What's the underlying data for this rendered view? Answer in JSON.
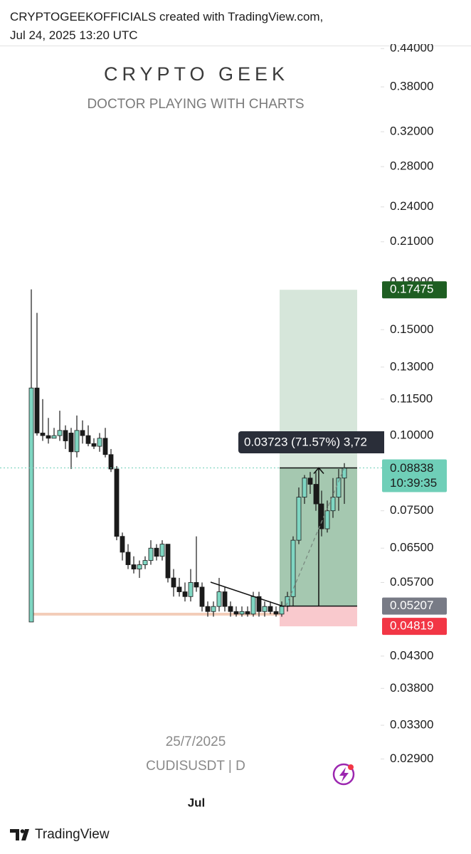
{
  "header": {
    "line1": "CRYPTOGEEKOFFICIALS created with TradingView.com,",
    "line2": "Jul 24, 2025 13:20 UTC"
  },
  "footer": {
    "brand": "TradingView"
  },
  "chart_data": {
    "type": "candlestick",
    "watermark_title": "CRYPTO GEEK",
    "watermark_subtitle": "DOCTOR PLAYING WITH CHARTS",
    "date_label": "25/7/2025",
    "symbol": "CUDISUSDT | D",
    "log_scale": true,
    "up_color": "#7fd6c2",
    "down_color": "#1a1a1a",
    "ylim": [
      0.0231,
      0.4439
    ],
    "yticks": [
      {
        "value": 0.44,
        "label": "0.44000"
      },
      {
        "value": 0.38,
        "label": "0.38000"
      },
      {
        "value": 0.32,
        "label": "0.32000"
      },
      {
        "value": 0.28,
        "label": "0.28000"
      },
      {
        "value": 0.24,
        "label": "0.24000"
      },
      {
        "value": 0.21,
        "label": "0.21000"
      },
      {
        "value": 0.18,
        "label": "0.18000"
      },
      {
        "value": 0.15,
        "label": "0.15000"
      },
      {
        "value": 0.13,
        "label": "0.13000"
      },
      {
        "value": 0.115,
        "label": "0.11500"
      },
      {
        "value": 0.1,
        "label": "0.10000"
      },
      {
        "value": 0.075,
        "label": "0.07500"
      },
      {
        "value": 0.065,
        "label": "0.06500"
      },
      {
        "value": 0.057,
        "label": "0.05700"
      },
      {
        "value": 0.043,
        "label": "0.04300"
      },
      {
        "value": 0.038,
        "label": "0.03800"
      },
      {
        "value": 0.033,
        "label": "0.03300"
      },
      {
        "value": 0.029,
        "label": "0.02900"
      }
    ],
    "categories": [
      null,
      null,
      null,
      null,
      null,
      null,
      null,
      null,
      null,
      null,
      null,
      null,
      null,
      null,
      null,
      null,
      null,
      null,
      null,
      null,
      null,
      null,
      null,
      null,
      null,
      null,
      null,
      null,
      null,
      "Jul",
      null,
      null,
      null,
      null,
      null,
      null,
      null,
      null,
      null,
      null,
      null,
      null,
      null,
      null,
      null,
      null,
      null,
      null,
      null,
      null,
      null,
      null,
      null,
      null,
      null,
      null
    ],
    "open": [
      0.049,
      0.12,
      0.101,
      0.1,
      0.099,
      0.1,
      0.102,
      0.101,
      0.094,
      0.102,
      0.1,
      0.097,
      0.096,
      0.099,
      0.093,
      0.088,
      0.068,
      0.064,
      0.061,
      0.06,
      0.061,
      0.062,
      0.065,
      0.063,
      0.066,
      0.058,
      0.056,
      0.055,
      0.054,
      0.057,
      0.056,
      0.052,
      0.051,
      0.052,
      0.055,
      0.052,
      0.051,
      0.0505,
      0.051,
      0.0505,
      0.054,
      0.051,
      0.052,
      0.051,
      0.0505,
      0.052,
      0.054,
      0.067,
      0.079,
      0.085,
      0.083,
      0.077,
      0.07,
      0.075,
      0.079,
      0.085
    ],
    "high": [
      0.175,
      0.16,
      0.115,
      0.107,
      0.103,
      0.11,
      0.104,
      0.103,
      0.108,
      0.106,
      0.104,
      0.099,
      0.101,
      0.103,
      0.095,
      0.089,
      0.069,
      0.066,
      0.063,
      0.062,
      0.063,
      0.067,
      0.066,
      0.067,
      0.066,
      0.06,
      0.058,
      0.057,
      0.06,
      0.068,
      0.057,
      0.053,
      0.053,
      0.058,
      0.056,
      0.053,
      0.052,
      0.052,
      0.052,
      0.055,
      0.055,
      0.053,
      0.053,
      0.052,
      0.053,
      0.055,
      0.068,
      0.082,
      0.086,
      0.087,
      0.087,
      0.081,
      0.078,
      0.085,
      0.088,
      0.09
    ],
    "low": [
      0.049,
      0.1,
      0.098,
      0.097,
      0.099,
      0.098,
      0.095,
      0.088,
      0.092,
      0.097,
      0.096,
      0.095,
      0.094,
      0.092,
      0.087,
      0.067,
      0.062,
      0.06,
      0.059,
      0.058,
      0.06,
      0.061,
      0.062,
      0.062,
      0.057,
      0.054,
      0.054,
      0.053,
      0.053,
      0.055,
      0.051,
      0.05,
      0.05,
      0.051,
      0.051,
      0.05,
      0.05,
      0.05,
      0.05,
      0.05,
      0.05,
      0.05,
      0.0505,
      0.05,
      0.05,
      0.051,
      0.052,
      0.066,
      0.077,
      0.08,
      0.075,
      0.068,
      0.069,
      0.073,
      0.075,
      0.077
    ],
    "close": [
      0.12,
      0.101,
      0.1,
      0.099,
      0.1,
      0.102,
      0.098,
      0.094,
      0.102,
      0.1,
      0.097,
      0.096,
      0.099,
      0.093,
      0.088,
      0.068,
      0.064,
      0.061,
      0.06,
      0.061,
      0.062,
      0.065,
      0.063,
      0.066,
      0.058,
      0.056,
      0.055,
      0.054,
      0.057,
      0.056,
      0.052,
      0.051,
      0.052,
      0.055,
      0.052,
      0.051,
      0.0505,
      0.051,
      0.0505,
      0.054,
      0.051,
      0.052,
      0.051,
      0.0505,
      0.052,
      0.054,
      0.067,
      0.079,
      0.085,
      0.083,
      0.077,
      0.07,
      0.075,
      0.079,
      0.085,
      0.08838
    ],
    "position": {
      "target": 0.17475,
      "entry": 0.05207,
      "stop": 0.04819,
      "target_color": "#1e5e22",
      "entry_color": "#787b86",
      "stop_color": "#f23645"
    },
    "last_price": 0.08838,
    "last_price_color": "#6fcfb8",
    "countdown": "10:39:35",
    "measure_label": "0.03723 (71.57%) 3,72"
  }
}
